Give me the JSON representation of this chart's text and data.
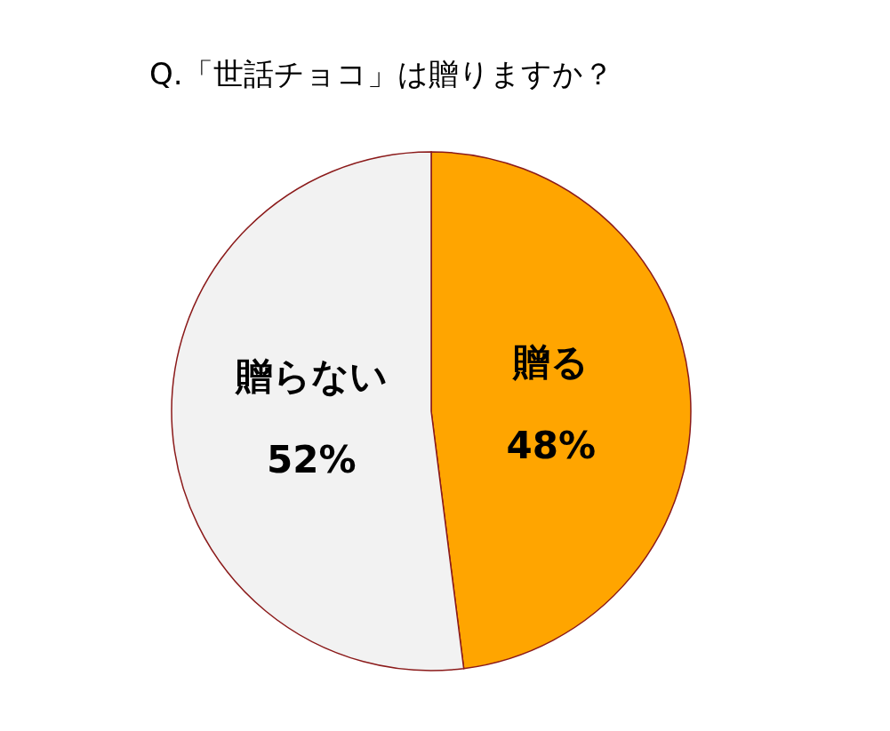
{
  "chart_data": {
    "type": "pie",
    "title": "Q.「世話チョコ」は贈りますか？",
    "categories": [
      "贈る",
      "贈らない"
    ],
    "values": [
      48,
      52
    ],
    "value_labels": [
      "48%",
      "52%"
    ],
    "colors": [
      "#ffa500",
      "#f2f2f2"
    ],
    "legend": false
  }
}
